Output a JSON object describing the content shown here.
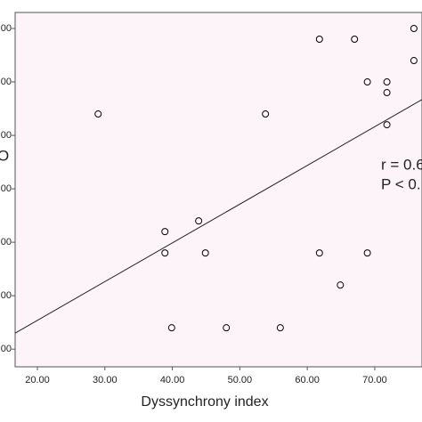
{
  "chart_data": {
    "type": "scatter",
    "x_label": "Dyssynchrony index",
    "y_label": "O",
    "annotations": [
      "r = 0.6",
      "P < 0."
    ],
    "xlim": [
      16.7,
      77
    ],
    "ylim": [
      -0.33,
      6.3
    ],
    "xticks": [
      {
        "value": 20,
        "label": "20.00"
      },
      {
        "value": 30,
        "label": "30.00"
      },
      {
        "value": 40,
        "label": "40.00"
      },
      {
        "value": 50,
        "label": "50.00"
      },
      {
        "value": 60,
        "label": "60.00"
      },
      {
        "value": 70,
        "label": "70.00"
      }
    ],
    "yticks": [
      {
        "value": 0,
        "label": "00"
      },
      {
        "value": 1,
        "label": "00"
      },
      {
        "value": 2,
        "label": "00"
      },
      {
        "value": 3,
        "label": "00"
      },
      {
        "value": 4,
        "label": "00"
      },
      {
        "value": 5,
        "label": "00"
      },
      {
        "value": 6,
        "label": "00"
      }
    ],
    "series": [
      {
        "color": "#000000",
        "x": [
          29.0,
          38.9,
          38.9,
          39.9,
          43.9,
          44.9,
          48.0,
          53.8,
          56.0,
          61.8,
          61.8,
          64.9,
          67.0,
          68.9,
          68.9,
          71.8,
          71.8,
          71.8,
          75.8,
          75.8
        ],
        "values": [
          4.4,
          2.2,
          1.8,
          0.4,
          2.4,
          1.8,
          0.4,
          4.4,
          0.4,
          5.8,
          1.8,
          1.2,
          5.8,
          5.0,
          1.8,
          5.0,
          4.8,
          4.2,
          6.0,
          5.4
        ]
      }
    ],
    "fit_line": {
      "x": [
        16.7,
        77
      ],
      "values": [
        0.3,
        4.67
      ]
    }
  }
}
